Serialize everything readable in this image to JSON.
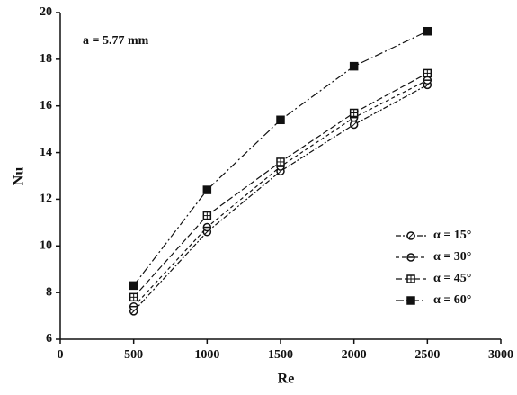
{
  "chart_data": {
    "type": "line",
    "x_label": "Re",
    "y_label": "Nu",
    "annotation": "a = 5.77 mm",
    "x": [
      500,
      1000,
      1500,
      2000,
      2500
    ],
    "series": [
      {
        "name": "α = 15°",
        "color": "#111111",
        "marker": "circle-slash",
        "values": [
          7.2,
          10.6,
          13.2,
          15.2,
          16.9
        ]
      },
      {
        "name": "α = 30°",
        "color": "#111111",
        "marker": "circle-bar",
        "values": [
          7.4,
          10.8,
          13.4,
          15.5,
          17.1
        ]
      },
      {
        "name": "α = 45°",
        "color": "#111111",
        "marker": "square-cross",
        "values": [
          7.8,
          11.3,
          13.6,
          15.7,
          17.4
        ]
      },
      {
        "name": "α = 60°",
        "color": "#111111",
        "marker": "square-filled",
        "values": [
          8.3,
          12.4,
          15.4,
          17.7,
          19.2
        ]
      }
    ],
    "xlim": [
      0,
      3000
    ],
    "xticks": [
      0,
      500,
      1000,
      1500,
      2000,
      2500,
      3000
    ],
    "ylim": [
      6,
      20
    ],
    "yticks": [
      6,
      8,
      10,
      12,
      14,
      16,
      18,
      20
    ],
    "legend": "lower right",
    "grid": false
  }
}
